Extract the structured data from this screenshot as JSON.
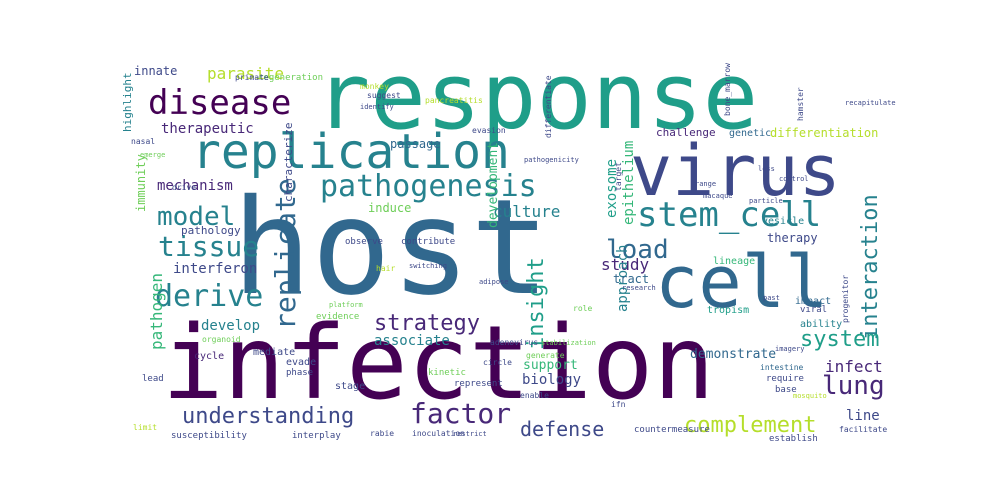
{
  "palette": {
    "dark_purple": "#440154",
    "purple": "#482878",
    "indigo": "#3e4989",
    "blue": "#31688e",
    "steel": "#26828e",
    "teal": "#1f9e89",
    "green": "#35b779",
    "lime": "#6ece58",
    "yellow": "#b5de2b"
  },
  "words": [
    {
      "text": "response",
      "color": "#1f9e89"
    },
    {
      "text": "host",
      "color": "#31688e"
    },
    {
      "text": "infection",
      "color": "#440154"
    },
    {
      "text": "virus",
      "color": "#3e4989"
    },
    {
      "text": "cell",
      "color": "#31688e"
    },
    {
      "text": "replication",
      "color": "#26828e"
    },
    {
      "text": "disease",
      "color": "#440154"
    },
    {
      "text": "pathogenesis",
      "color": "#26828e"
    },
    {
      "text": "stem_cell",
      "color": "#26828e"
    },
    {
      "text": "model",
      "color": "#26828e"
    },
    {
      "text": "tissue",
      "color": "#26828e"
    },
    {
      "text": "derive",
      "color": "#26828e"
    },
    {
      "text": "load",
      "color": "#31688e"
    },
    {
      "text": "replicate",
      "color": "#31688e"
    },
    {
      "text": "interaction",
      "color": "#26828e"
    },
    {
      "text": "strategy",
      "color": "#482878"
    },
    {
      "text": "insight",
      "color": "#1f9e89"
    },
    {
      "text": "system",
      "color": "#1f9e89"
    },
    {
      "text": "lung",
      "color": "#482878"
    },
    {
      "text": "understanding",
      "color": "#3e4989"
    },
    {
      "text": "factor",
      "color": "#482878"
    },
    {
      "text": "complement",
      "color": "#b5de2b"
    },
    {
      "text": "defense",
      "color": "#3e4989"
    },
    {
      "text": "parasite",
      "color": "#b5de2b"
    },
    {
      "text": "therapeutic",
      "color": "#482878"
    },
    {
      "text": "mechanism",
      "color": "#482878"
    },
    {
      "text": "culture",
      "color": "#26828e"
    },
    {
      "text": "study",
      "color": "#482878"
    },
    {
      "text": "exosome",
      "color": "#1f9e89"
    },
    {
      "text": "epithelium",
      "color": "#35b779"
    },
    {
      "text": "development",
      "color": "#35b779"
    },
    {
      "text": "interferon",
      "color": "#3e4989"
    },
    {
      "text": "develop",
      "color": "#26828e"
    },
    {
      "text": "associate",
      "color": "#26828e"
    },
    {
      "text": "pathogen",
      "color": "#35b779"
    },
    {
      "text": "infect",
      "color": "#482878"
    },
    {
      "text": "demonstrate",
      "color": "#31688e"
    },
    {
      "text": "approach",
      "color": "#26828e"
    },
    {
      "text": "biology",
      "color": "#3e4989"
    },
    {
      "text": "therapy",
      "color": "#3e4989"
    },
    {
      "text": "immunity",
      "color": "#6ece58"
    },
    {
      "text": "characterize",
      "color": "#3e4989"
    },
    {
      "text": "induce",
      "color": "#6ece58"
    },
    {
      "text": "tract",
      "color": "#31688e"
    },
    {
      "text": "support",
      "color": "#35b779"
    },
    {
      "text": "differentiation",
      "color": "#b5de2b"
    },
    {
      "text": "passage",
      "color": "#31688e"
    },
    {
      "text": "innate",
      "color": "#3e4989"
    },
    {
      "text": "highlight",
      "color": "#26828e"
    },
    {
      "text": "pathology",
      "color": "#3e4989"
    },
    {
      "text": "line",
      "color": "#3e4989"
    },
    {
      "text": "challenge",
      "color": "#482878"
    },
    {
      "text": "genetic",
      "color": "#31688e"
    },
    {
      "text": "tropism",
      "color": "#1f9e89"
    },
    {
      "text": "lineage",
      "color": "#35b779"
    },
    {
      "text": "impact",
      "color": "#31688e"
    },
    {
      "text": "ability",
      "color": "#26828e"
    },
    {
      "text": "stage",
      "color": "#3e4989"
    },
    {
      "text": "evidence",
      "color": "#6ece58"
    },
    {
      "text": "cycle",
      "color": "#482878"
    },
    {
      "text": "evade",
      "color": "#3e4989"
    },
    {
      "text": "phase",
      "color": "#3e4989"
    },
    {
      "text": "mediate",
      "color": "#3e4989"
    },
    {
      "text": "kinetic",
      "color": "#6ece58"
    },
    {
      "text": "represent",
      "color": "#3e4989"
    },
    {
      "text": "require",
      "color": "#3e4989"
    },
    {
      "text": "base",
      "color": "#3e4989"
    },
    {
      "text": "viral",
      "color": "#3e4989"
    },
    {
      "text": "progenitor",
      "color": "#3e4989"
    },
    {
      "text": "intestine",
      "color": "#31688e"
    },
    {
      "text": "observe",
      "color": "#3e4989"
    },
    {
      "text": "contribute",
      "color": "#3e4989"
    },
    {
      "text": "vesicle",
      "color": "#26828e"
    },
    {
      "text": "susceptibility",
      "color": "#3e4989"
    },
    {
      "text": "interplay",
      "color": "#3e4989"
    },
    {
      "text": "rabie",
      "color": "#3e4989"
    },
    {
      "text": "inoculation",
      "color": "#3e4989"
    },
    {
      "text": "countermeasure",
      "color": "#3e4989"
    },
    {
      "text": "establish",
      "color": "#3e4989"
    },
    {
      "text": "facilitate",
      "color": "#3e4989"
    },
    {
      "text": "adenovirus",
      "color": "#3e4989"
    },
    {
      "text": "regeneration",
      "color": "#6ece58"
    },
    {
      "text": "primate",
      "color": "#3e4989"
    },
    {
      "text": "suggest",
      "color": "#3e4989"
    },
    {
      "text": "identify",
      "color": "#3e4989"
    },
    {
      "text": "bone_marrow",
      "color": "#3e4989"
    },
    {
      "text": "hamster",
      "color": "#3e4989"
    },
    {
      "text": "recapitulate",
      "color": "#3e4989"
    },
    {
      "text": "evasion",
      "color": "#3e4989"
    },
    {
      "text": "differentiate",
      "color": "#3e4989"
    },
    {
      "text": "nasal",
      "color": "#3e4989"
    },
    {
      "text": "adipose",
      "color": "#3e4989"
    },
    {
      "text": "switching",
      "color": "#3e4989"
    },
    {
      "text": "generate",
      "color": "#6ece58"
    },
    {
      "text": "enable",
      "color": "#3e4989"
    },
    {
      "text": "lead",
      "color": "#3e4989"
    },
    {
      "text": "target",
      "color": "#3e4989"
    },
    {
      "text": "range",
      "color": "#3e4989"
    },
    {
      "text": "control",
      "color": "#3e4989"
    },
    {
      "text": "particle",
      "color": "#3e4989"
    },
    {
      "text": "pathogenicity",
      "color": "#3e4989"
    },
    {
      "text": "research",
      "color": "#3e4989"
    },
    {
      "text": "role",
      "color": "#6ece58"
    },
    {
      "text": "ifn",
      "color": "#3e4989"
    },
    {
      "text": "limit",
      "color": "#b5de2b"
    },
    {
      "text": "restrict",
      "color": "#3e4989"
    },
    {
      "text": "monkey",
      "color": "#b5de2b"
    },
    {
      "text": "pancreatitis",
      "color": "#b5de2b"
    },
    {
      "text": "drive",
      "color": "#3e4989"
    },
    {
      "text": "emerge",
      "color": "#6ece58"
    },
    {
      "text": "stabilization",
      "color": "#6ece58"
    },
    {
      "text": "platform",
      "color": "#6ece58"
    },
    {
      "text": "organoid",
      "color": "#6ece58"
    },
    {
      "text": "hair",
      "color": "#b5de2b"
    },
    {
      "text": "loss",
      "color": "#3e4989"
    },
    {
      "text": "past",
      "color": "#3e4989"
    },
    {
      "text": "imagery",
      "color": "#3e4989"
    },
    {
      "text": "macaque",
      "color": "#3e4989"
    },
    {
      "text": "mosquito",
      "color": "#b5de2b"
    },
    {
      "text": "circle",
      "color": "#3e4989"
    }
  ]
}
